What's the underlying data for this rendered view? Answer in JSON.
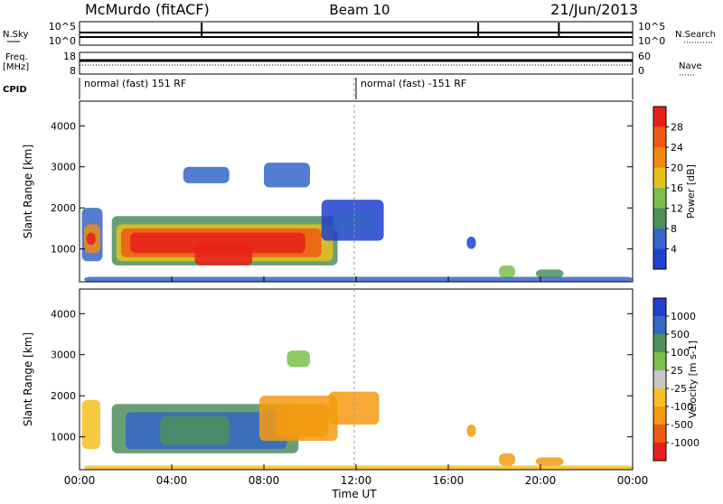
{
  "header": {
    "station": "McMurdo (fitACF)",
    "beam": "Beam 10",
    "date": "21/Jun/2013"
  },
  "noise_panel": {
    "left_label": "N.Sky",
    "right_label": "N.Search",
    "left_ticks": [
      "10^5",
      "10^0"
    ],
    "right_ticks": [
      "10^5",
      "10^0"
    ]
  },
  "freq_panel": {
    "left_label_line1": "Freq.",
    "left_label_line2": "[MHz]",
    "right_label": "Nave",
    "left_ticks": [
      "18",
      "8"
    ],
    "right_ticks": [
      "60",
      "0"
    ]
  },
  "cpid": {
    "label": "CPID",
    "segments": [
      {
        "text": "normal (fast) 151 RF",
        "start_hour": 0
      },
      {
        "text": "normal (fast) -151 RF",
        "start_hour": 12
      }
    ]
  },
  "colors": {
    "power": [
      "#2040d0",
      "#3566c8",
      "#4e8f5a",
      "#7ac04a",
      "#e6c21a",
      "#f08a10",
      "#f05a10",
      "#e8201a"
    ],
    "velocity": [
      "#e8201a",
      "#f05a10",
      "#f59a10",
      "#f5c020",
      "#c8c8c8",
      "#7ac04a",
      "#4e8f5a",
      "#3566c8",
      "#2040d0"
    ]
  },
  "chart_data": [
    {
      "type": "heatmap",
      "panel": "power",
      "ylabel": "Slant Range [km]",
      "yticks": [
        "4000",
        "3000",
        "2000",
        "1000"
      ],
      "ylim": [
        200,
        4600
      ],
      "colorbar_label": "Power [dB]",
      "colorbar_ticks": [
        "28",
        "24",
        "20",
        "16",
        "12",
        "8",
        "4"
      ],
      "colorbar_range": [
        0,
        32
      ]
    },
    {
      "type": "heatmap",
      "panel": "velocity",
      "ylabel": "Slant Range [km]",
      "yticks": [
        "4000",
        "3000",
        "2000",
        "1000"
      ],
      "ylim": [
        200,
        4600
      ],
      "colorbar_label": "Velocity [m s-1]",
      "colorbar_ticks": [
        "1000",
        "500",
        "100",
        "25",
        "-25",
        "-100",
        "-500",
        "-1000"
      ]
    }
  ],
  "x_axis": {
    "label": "Time UT",
    "ticks": [
      "00:00",
      "04:00",
      "08:00",
      "12:00",
      "16:00",
      "20:00",
      "00:00"
    ],
    "range_hours": [
      0,
      24
    ]
  }
}
